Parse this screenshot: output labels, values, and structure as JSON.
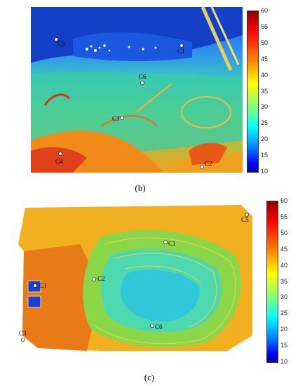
{
  "panel_b": {
    "caption": "(b)",
    "colorbar_ticks": [
      "60",
      "55",
      "50",
      "45",
      "40",
      "35",
      "30",
      "25",
      "20",
      "15",
      "10"
    ],
    "markers": [
      "C1",
      "C2",
      "C3",
      "C4",
      "C5",
      "C6"
    ]
  },
  "panel_c": {
    "caption": "(c)",
    "colorbar_ticks": [
      "60",
      "55",
      "50",
      "45",
      "40",
      "35",
      "30",
      "25",
      "20",
      "15",
      "10"
    ],
    "markers": [
      "C1",
      "C1",
      "C2",
      "C3",
      "C5",
      "C6"
    ]
  },
  "colors": {
    "scale_low": "#00008f",
    "scale_mid": "#2fd8a8",
    "scale_high": "#8f0000"
  }
}
